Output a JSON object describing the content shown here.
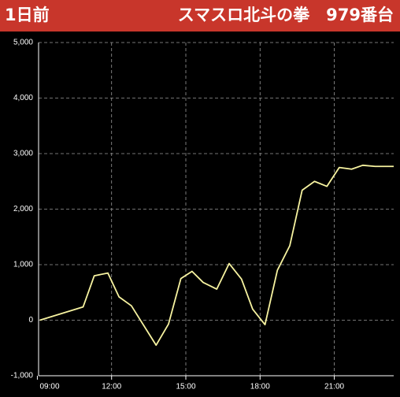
{
  "chart_data": {
    "type": "line",
    "subtitle": "1日前",
    "title": "スマスロ北斗の拳　979番台",
    "x": [
      9.1,
      10.85,
      11.3,
      11.85,
      12.3,
      12.8,
      13.8,
      14.3,
      14.8,
      15.25,
      15.7,
      16.25,
      16.75,
      17.25,
      17.7,
      18.2,
      18.7,
      19.2,
      19.7,
      20.2,
      20.7,
      21.2,
      21.7,
      22.15,
      22.65,
      23.4
    ],
    "values": [
      0,
      240,
      800,
      850,
      420,
      260,
      -450,
      -70,
      750,
      880,
      680,
      560,
      1020,
      740,
      200,
      -80,
      900,
      1340,
      2340,
      2500,
      2410,
      2750,
      2720,
      2790,
      2770,
      2770
    ],
    "color": "#f7f3a0",
    "xlim": [
      9.05,
      23.4
    ],
    "xticks": [
      {
        "value": 9,
        "label": "09:00"
      },
      {
        "value": 12,
        "label": "12:00"
      },
      {
        "value": 15,
        "label": "15:00"
      },
      {
        "value": 18,
        "label": "18:00"
      },
      {
        "value": 21,
        "label": "21:00"
      }
    ],
    "ylim": [
      -1000,
      5000
    ],
    "yticks": [
      {
        "value": -1000,
        "label": "-1,000"
      },
      0,
      {
        "value": 1000,
        "label": "1,000"
      },
      {
        "value": 2000,
        "label": "2,000"
      },
      {
        "value": 3000,
        "label": "3,000"
      },
      {
        "value": 4000,
        "label": "4,000"
      },
      {
        "value": 5000,
        "label": "5,000"
      }
    ],
    "grid": true
  }
}
